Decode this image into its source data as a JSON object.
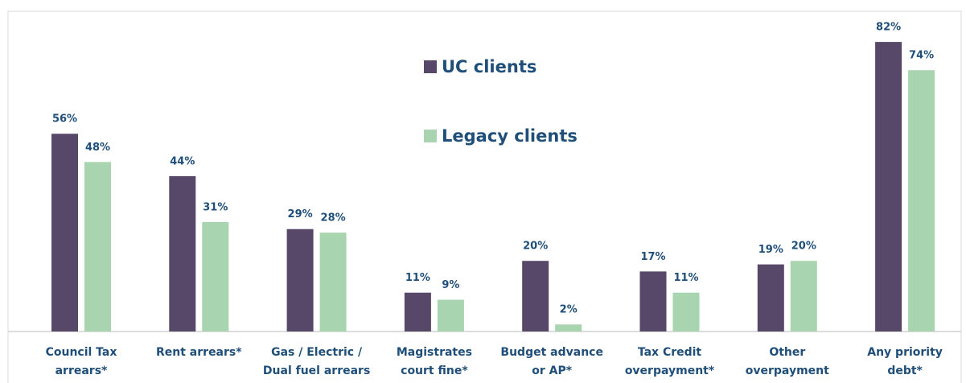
{
  "chart_data": {
    "type": "bar",
    "categories": [
      [
        "Council Tax",
        "arrears*"
      ],
      [
        "Rent arrears*"
      ],
      [
        "Gas / Electric /",
        "Dual fuel arrears"
      ],
      [
        "Magistrates",
        "court fine*"
      ],
      [
        "Budget advance",
        "or AP*"
      ],
      [
        "Tax Credit",
        "overpayment*"
      ],
      [
        "Other",
        "overpayment"
      ],
      [
        "Any priority",
        "debt*"
      ]
    ],
    "series": [
      {
        "name": "UC clients",
        "color": "#574769",
        "values": [
          56,
          44,
          29,
          11,
          20,
          17,
          19,
          82
        ],
        "value_labels": [
          "56%",
          "44%",
          "29%",
          "11%",
          "20%",
          "17%",
          "19%",
          "82%"
        ]
      },
      {
        "name": "Legacy clients",
        "color": "#a8d5b0",
        "values": [
          48,
          31,
          28,
          9,
          2,
          11,
          20,
          74
        ],
        "value_labels": [
          "48%",
          "31%",
          "28%",
          "9%",
          "2%",
          "11%",
          "20%",
          "74%"
        ]
      }
    ],
    "ylim": [
      0,
      90
    ]
  }
}
